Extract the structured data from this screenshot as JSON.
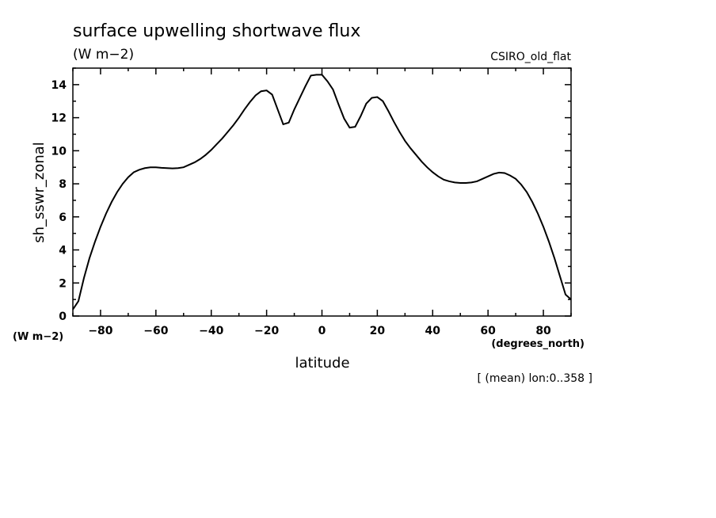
{
  "chart_data": {
    "type": "line",
    "title": "surface upwelling shortwave flux",
    "units": "(W m−2)",
    "model": "CSIRO_old_flat",
    "xlabel": "latitude",
    "x_units": "(degrees_north)",
    "ylabel": "sh_sswr_zonal",
    "y_units": "(W m−2)",
    "note": "[ (mean) lon:0..358 ]",
    "xlim": [
      -90,
      90
    ],
    "ylim": [
      0,
      15
    ],
    "x_ticks": [
      -80,
      -60,
      -40,
      -20,
      0,
      20,
      40,
      60,
      80
    ],
    "y_ticks": [
      0,
      2,
      4,
      6,
      8,
      10,
      12,
      14
    ],
    "color": "#000000",
    "series": [
      {
        "x": [
          -90,
          -88,
          -86,
          -84,
          -82,
          -80,
          -78,
          -76,
          -74,
          -72,
          -70,
          -68,
          -66,
          -64,
          -62,
          -60,
          -58,
          -56,
          -54,
          -52,
          -50,
          -48,
          -46,
          -44,
          -42,
          -40,
          -38,
          -36,
          -34,
          -32,
          -30,
          -28,
          -26,
          -24,
          -22,
          -20,
          -18,
          -16,
          -14,
          -12,
          -10,
          -8,
          -6,
          -4,
          -2,
          0,
          2,
          4,
          6,
          8,
          10,
          12,
          14,
          16,
          18,
          20,
          22,
          24,
          26,
          28,
          30,
          32,
          34,
          36,
          38,
          40,
          42,
          44,
          46,
          48,
          50,
          52,
          54,
          56,
          58,
          60,
          62,
          64,
          66,
          68,
          70,
          72,
          74,
          76,
          78,
          80,
          82,
          84,
          86,
          88,
          90
        ],
        "y": [
          0.4,
          0.9,
          2.3,
          3.5,
          4.5,
          5.4,
          6.2,
          6.9,
          7.5,
          8.0,
          8.4,
          8.7,
          8.85,
          8.95,
          9.0,
          9.0,
          8.97,
          8.95,
          8.93,
          8.95,
          9.0,
          9.15,
          9.3,
          9.5,
          9.75,
          10.05,
          10.4,
          10.75,
          11.15,
          11.55,
          12.0,
          12.5,
          12.95,
          13.35,
          13.6,
          13.65,
          13.4,
          12.5,
          11.6,
          11.7,
          12.5,
          13.2,
          13.9,
          14.55,
          14.6,
          14.6,
          14.2,
          13.7,
          12.8,
          11.95,
          11.4,
          11.45,
          12.1,
          12.85,
          13.2,
          13.25,
          13.0,
          12.4,
          11.75,
          11.15,
          10.6,
          10.15,
          9.75,
          9.35,
          9.0,
          8.7,
          8.45,
          8.25,
          8.15,
          8.08,
          8.05,
          8.05,
          8.08,
          8.15,
          8.3,
          8.45,
          8.6,
          8.68,
          8.65,
          8.5,
          8.3,
          7.95,
          7.5,
          6.9,
          6.2,
          5.4,
          4.5,
          3.5,
          2.4,
          1.3,
          1.0
        ]
      }
    ]
  }
}
